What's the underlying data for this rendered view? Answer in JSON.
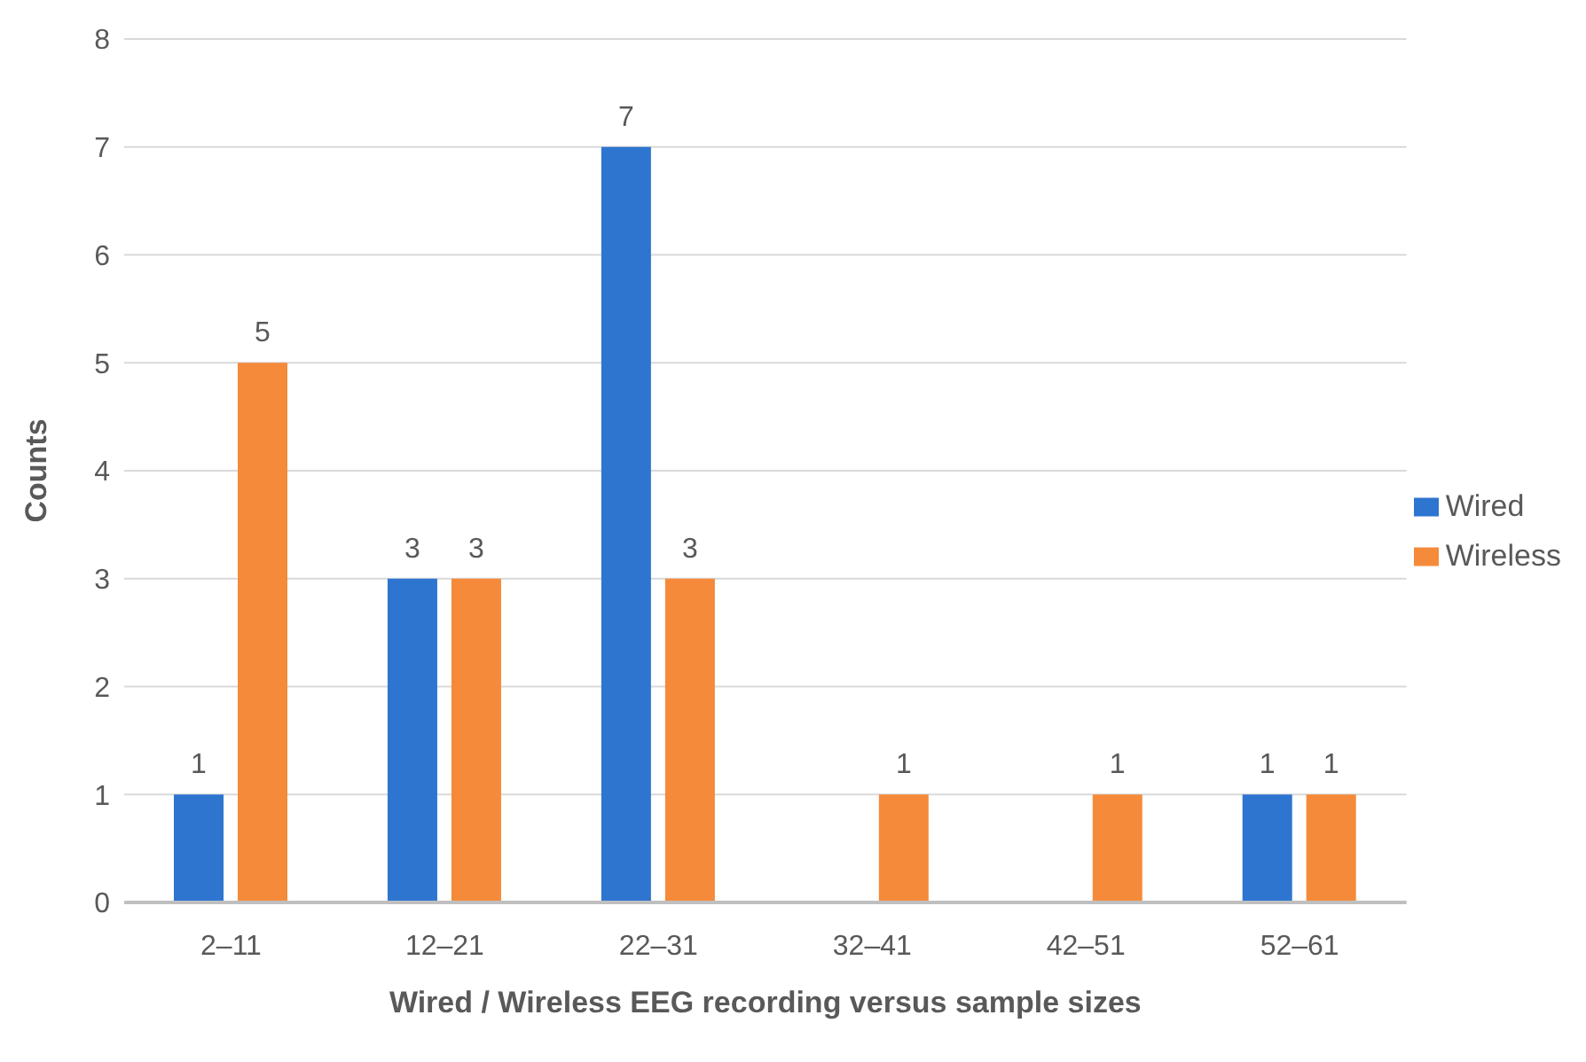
{
  "chart_data": {
    "type": "bar",
    "xlabel": "Wired / Wireless EEG recording versus sample sizes",
    "ylabel": "Counts",
    "categories": [
      "2–11",
      "12–21",
      "22–31",
      "32–41",
      "42–51",
      "52–61"
    ],
    "series": [
      {
        "name": "Wired",
        "color": "#2e75d0",
        "values": [
          1,
          3,
          7,
          0,
          0,
          1
        ],
        "value_labels": [
          "1",
          "3",
          "7",
          null,
          null,
          "1"
        ]
      },
      {
        "name": "Wireless",
        "color": "#f58a3a",
        "values": [
          5,
          3,
          3,
          1,
          1,
          1
        ],
        "value_labels": [
          "5",
          "3",
          "3",
          "1",
          "1",
          "1"
        ]
      }
    ],
    "ylim": [
      0,
      8
    ],
    "yticks": [
      0,
      1,
      2,
      3,
      4,
      5,
      6,
      7,
      8
    ],
    "grid": "y",
    "legend": "right"
  }
}
